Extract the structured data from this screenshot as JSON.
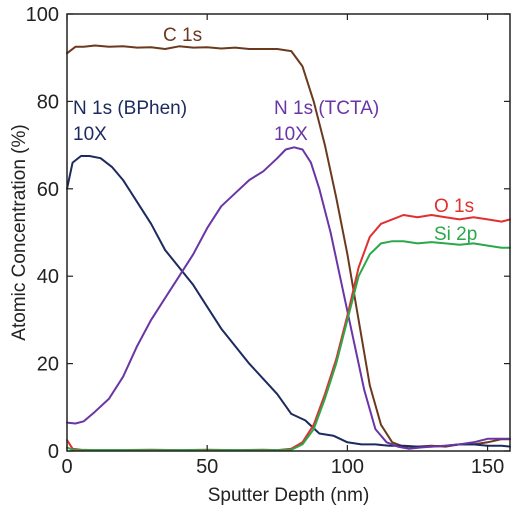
{
  "chart_data": {
    "type": "line",
    "title": "",
    "xlabel": "Sputter Depth (nm)",
    "ylabel": "Atomic Concentration (%)",
    "xlim": [
      0,
      158
    ],
    "ylim": [
      0,
      100
    ],
    "xticks": [
      "0",
      "50",
      "100",
      "150"
    ],
    "xtick_values": [
      0,
      50,
      100,
      150
    ],
    "yticks": [
      "0",
      "20",
      "40",
      "60",
      "80",
      "100"
    ],
    "ytick_values": [
      0,
      20,
      40,
      60,
      80,
      100
    ],
    "grid": false,
    "legend": "none",
    "series": [
      {
        "name": "C 1s",
        "color": "#6b3a1e",
        "label_lines": [
          "C 1s"
        ],
        "x": [
          0,
          3,
          6,
          10,
          15,
          20,
          25,
          30,
          35,
          40,
          45,
          50,
          55,
          60,
          65,
          70,
          75,
          80,
          84,
          88,
          92,
          96,
          100,
          104,
          108,
          112,
          116,
          120,
          125,
          130,
          135,
          140,
          145,
          150,
          155,
          158
        ],
        "y": [
          91,
          92.5,
          92.5,
          92.8,
          92.5,
          92.6,
          92.3,
          92.4,
          92,
          92.6,
          92.3,
          92.4,
          92.1,
          92.3,
          92,
          92,
          92,
          91.5,
          88,
          80,
          70,
          58,
          45,
          30,
          15,
          6,
          2,
          1,
          1,
          1.2,
          1,
          1.5,
          1.5,
          2,
          2.7,
          2.7
        ]
      },
      {
        "name": "N 1s (BPhen)",
        "color": "#1c2a5e",
        "label_lines": [
          "N 1s (BPhen)",
          "10X"
        ],
        "x": [
          0,
          2,
          5,
          8,
          12,
          16,
          20,
          25,
          30,
          35,
          40,
          45,
          50,
          55,
          60,
          65,
          70,
          75,
          80,
          85,
          90,
          95,
          100,
          105,
          110,
          115,
          120,
          125,
          130,
          135,
          140,
          145,
          150,
          155,
          158
        ],
        "y": [
          60,
          66,
          67.5,
          67.5,
          67,
          65,
          62,
          57,
          52,
          46,
          42,
          38,
          33,
          28,
          24,
          20,
          16.5,
          13,
          8.5,
          7,
          4,
          3.5,
          2,
          1.5,
          1.5,
          1.2,
          1.2,
          1,
          1,
          1.2,
          1.5,
          1.5,
          1.2,
          1.2,
          1
        ]
      },
      {
        "name": "N 1s (TCTA)",
        "color": "#6a35a5",
        "label_lines": [
          "N 1s (TCTA)",
          "10X"
        ],
        "x": [
          0,
          3,
          6,
          10,
          15,
          20,
          25,
          30,
          35,
          40,
          45,
          50,
          55,
          60,
          65,
          70,
          75,
          78,
          81,
          84,
          87,
          90,
          94,
          98,
          102,
          106,
          110,
          114,
          118,
          122,
          126,
          130,
          135,
          140,
          145,
          150,
          155,
          158
        ],
        "y": [
          6.5,
          6.3,
          6.8,
          9,
          12,
          17,
          24,
          30,
          35,
          40,
          45,
          51,
          56,
          59,
          62,
          64,
          67,
          69,
          69.5,
          69,
          66,
          60,
          50,
          38,
          26,
          14,
          5,
          2,
          1,
          0.5,
          0.8,
          1,
          1.2,
          1.5,
          2,
          2.8,
          2.8,
          2.8
        ]
      },
      {
        "name": "O 1s",
        "color": "#e03030",
        "label_lines": [
          "O 1s"
        ],
        "x": [
          0,
          2,
          5,
          10,
          20,
          30,
          40,
          50,
          60,
          70,
          75,
          80,
          84,
          88,
          92,
          96,
          100,
          104,
          108,
          112,
          116,
          120,
          125,
          130,
          135,
          140,
          145,
          150,
          155,
          158
        ],
        "y": [
          2.5,
          0.5,
          0.3,
          0.2,
          0.2,
          0.3,
          0.2,
          0.3,
          0.2,
          0.3,
          0.2,
          0.5,
          2,
          6,
          13,
          21,
          31,
          42,
          49,
          52,
          53,
          54,
          53.5,
          54,
          53.5,
          53,
          53.5,
          53,
          52.5,
          53
        ]
      },
      {
        "name": "Si 2p",
        "color": "#2aa84a",
        "label_lines": [
          "Si 2p"
        ],
        "x": [
          0,
          2,
          5,
          10,
          20,
          30,
          40,
          50,
          60,
          70,
          75,
          80,
          84,
          88,
          92,
          96,
          100,
          104,
          108,
          112,
          116,
          120,
          125,
          130,
          135,
          140,
          145,
          150,
          155,
          158
        ],
        "y": [
          0.8,
          0.3,
          0.2,
          0.2,
          0.2,
          0.2,
          0.2,
          0.2,
          0.2,
          0.2,
          0.2,
          0.3,
          1.5,
          5,
          12,
          20,
          30,
          40,
          45,
          47.5,
          48,
          48,
          47.5,
          47.8,
          47.5,
          47.2,
          47.5,
          47,
          46.5,
          46.5
        ]
      }
    ]
  }
}
